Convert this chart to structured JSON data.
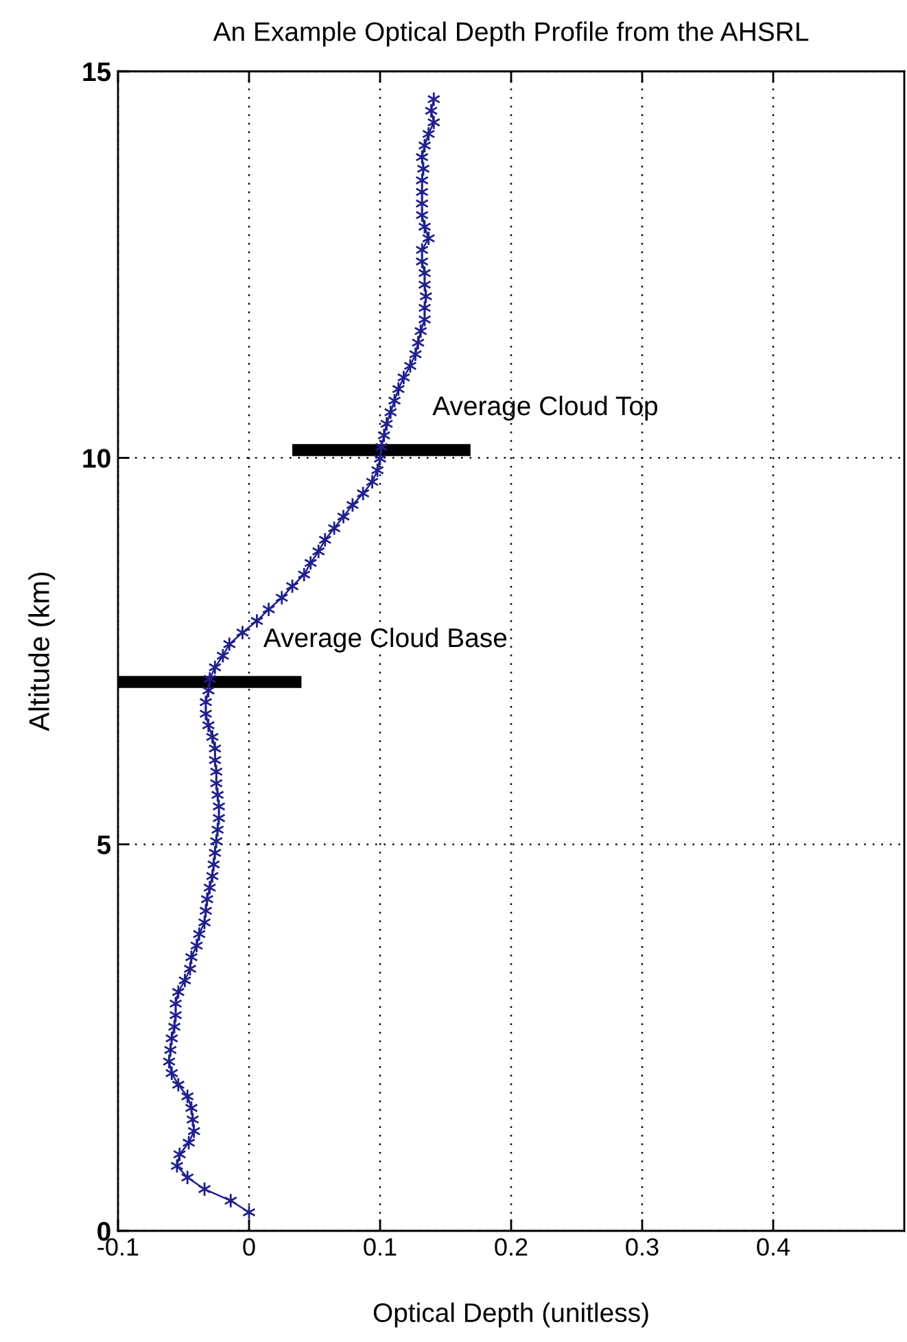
{
  "chart_data": {
    "type": "line",
    "title": "An Example Optical Depth Profile from the AHSRL",
    "xlabel": "Optical Depth (unitless)",
    "ylabel": "Altitude (km)",
    "xlim": [
      -0.1,
      0.5
    ],
    "xticks": [
      -0.1,
      0,
      0.1,
      0.2,
      0.3,
      0.4
    ],
    "ylim": [
      0,
      15
    ],
    "yticks": [
      0,
      5,
      10,
      15
    ],
    "grid": true,
    "line_style": "solid",
    "series": [
      {
        "color": "#1f1f8f",
        "marker": "cross",
        "x": [
          0.0,
          -0.014,
          -0.034,
          -0.047,
          -0.055,
          -0.053,
          -0.046,
          -0.042,
          -0.043,
          -0.044,
          -0.047,
          -0.054,
          -0.059,
          -0.061,
          -0.06,
          -0.059,
          -0.057,
          -0.056,
          -0.056,
          -0.054,
          -0.049,
          -0.045,
          -0.044,
          -0.04,
          -0.038,
          -0.034,
          -0.033,
          -0.032,
          -0.03,
          -0.028,
          -0.027,
          -0.026,
          -0.025,
          -0.024,
          -0.023,
          -0.023,
          -0.024,
          -0.025,
          -0.025,
          -0.026,
          -0.026,
          -0.028,
          -0.031,
          -0.033,
          -0.033,
          -0.031,
          -0.03,
          -0.026,
          -0.02,
          -0.015,
          -0.005,
          0.006,
          0.015,
          0.025,
          0.033,
          0.042,
          0.047,
          0.053,
          0.058,
          0.065,
          0.072,
          0.079,
          0.087,
          0.094,
          0.098,
          0.1,
          0.101,
          0.103,
          0.105,
          0.108,
          0.111,
          0.114,
          0.118,
          0.123,
          0.127,
          0.129,
          0.131,
          0.134,
          0.134,
          0.135,
          0.134,
          0.134,
          0.132,
          0.132,
          0.137,
          0.134,
          0.132,
          0.132,
          0.132,
          0.132,
          0.133,
          0.132,
          0.134,
          0.137,
          0.141,
          0.139,
          0.141
        ],
        "values": [
          0.24,
          0.39,
          0.54,
          0.69,
          0.84,
          0.99,
          1.14,
          1.29,
          1.44,
          1.59,
          1.74,
          1.89,
          2.04,
          2.19,
          2.34,
          2.49,
          2.64,
          2.79,
          2.94,
          3.09,
          3.24,
          3.39,
          3.54,
          3.69,
          3.84,
          3.99,
          4.14,
          4.29,
          4.44,
          4.59,
          4.74,
          4.89,
          5.04,
          5.19,
          5.34,
          5.49,
          5.64,
          5.79,
          5.94,
          6.09,
          6.24,
          6.39,
          6.54,
          6.69,
          6.84,
          6.99,
          7.14,
          7.29,
          7.44,
          7.59,
          7.74,
          7.89,
          8.04,
          8.19,
          8.34,
          8.49,
          8.64,
          8.79,
          8.94,
          9.09,
          9.24,
          9.39,
          9.54,
          9.69,
          9.84,
          9.99,
          10.14,
          10.29,
          10.44,
          10.59,
          10.74,
          10.89,
          11.04,
          11.19,
          11.34,
          11.49,
          11.64,
          11.79,
          11.94,
          12.09,
          12.24,
          12.39,
          12.54,
          12.69,
          12.84,
          12.99,
          13.14,
          13.29,
          13.44,
          13.59,
          13.74,
          13.89,
          14.04,
          14.19,
          14.34,
          14.49,
          14.64
        ]
      },
      {
        "name": "Average Cloud Top",
        "color": "#000000",
        "marker": "none",
        "x": [
          0.033,
          0.169
        ],
        "values": [
          10.1,
          10.1
        ]
      },
      {
        "name": "Average Cloud Base",
        "color": "#000000",
        "marker": "none",
        "x": [
          -0.1,
          0.04
        ],
        "values": [
          7.1,
          7.1
        ]
      }
    ]
  }
}
